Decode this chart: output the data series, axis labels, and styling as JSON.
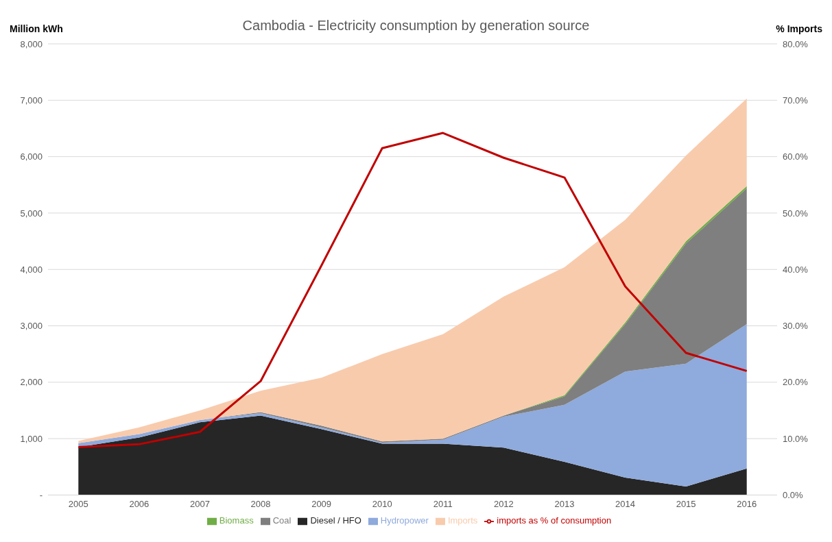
{
  "chart_data": {
    "type": "area",
    "title": "Cambodia - Electricity consumption by generation source",
    "ylabel": "Million kWh",
    "y2label": "% Imports",
    "stacked": true,
    "categories": [
      "2005",
      "2006",
      "2007",
      "2008",
      "2009",
      "2010",
      "2011",
      "2012",
      "2013",
      "2014",
      "2015",
      "2016"
    ],
    "series": [
      {
        "name": "Diesel / HFO",
        "color": "#262626",
        "values": [
          850,
          1020,
          1290,
          1410,
          1170,
          910,
          910,
          840,
          590,
          310,
          150,
          470
        ]
      },
      {
        "name": "Hydropower",
        "color": "#8faadc",
        "values": [
          70,
          60,
          40,
          40,
          30,
          20,
          70,
          550,
          1010,
          1880,
          2180,
          2560
        ]
      },
      {
        "name": "Coal",
        "color": "#7f7f7f",
        "values": [
          0,
          0,
          0,
          20,
          30,
          20,
          20,
          20,
          150,
          840,
          2130,
          2410
        ]
      },
      {
        "name": "Biomass",
        "color": "#70ad47",
        "values": [
          0,
          0,
          0,
          0,
          0,
          0,
          0,
          0,
          20,
          30,
          40,
          40
        ]
      },
      {
        "name": "Imports",
        "color": "#f8cbad",
        "values": [
          40,
          120,
          170,
          380,
          850,
          1550,
          1850,
          2110,
          2270,
          1820,
          1520,
          1550
        ]
      },
      {
        "name": "imports as % of consumption",
        "type": "line",
        "axis": "y2",
        "color": "#c00000",
        "values": [
          8.5,
          9.0,
          11.2,
          20.2,
          40.7,
          61.5,
          64.2,
          59.8,
          56.3,
          37.0,
          25.2,
          22.0
        ]
      }
    ],
    "ylim": [
      0,
      8000
    ],
    "yticks": [
      {
        "value": 0,
        "label": "-"
      },
      {
        "value": 1000,
        "label": "1,000"
      },
      {
        "value": 2000,
        "label": "2,000"
      },
      {
        "value": 3000,
        "label": "3,000"
      },
      {
        "value": 4000,
        "label": "4,000"
      },
      {
        "value": 5000,
        "label": "5,000"
      },
      {
        "value": 6000,
        "label": "6,000"
      },
      {
        "value": 7000,
        "label": "7,000"
      },
      {
        "value": 8000,
        "label": "8,000"
      }
    ],
    "y2lim": [
      0,
      80
    ],
    "y2ticks": [
      {
        "value": 0,
        "label": "0.0%"
      },
      {
        "value": 10,
        "label": "10.0%"
      },
      {
        "value": 20,
        "label": "20.0%"
      },
      {
        "value": 30,
        "label": "30.0%"
      },
      {
        "value": 40,
        "label": "40.0%"
      },
      {
        "value": 50,
        "label": "50.0%"
      },
      {
        "value": 60,
        "label": "60.0%"
      },
      {
        "value": 70,
        "label": "70.0%"
      },
      {
        "value": 80,
        "label": "80.0%"
      }
    ],
    "grid": "y",
    "legend": "bottom",
    "marker": "none"
  }
}
